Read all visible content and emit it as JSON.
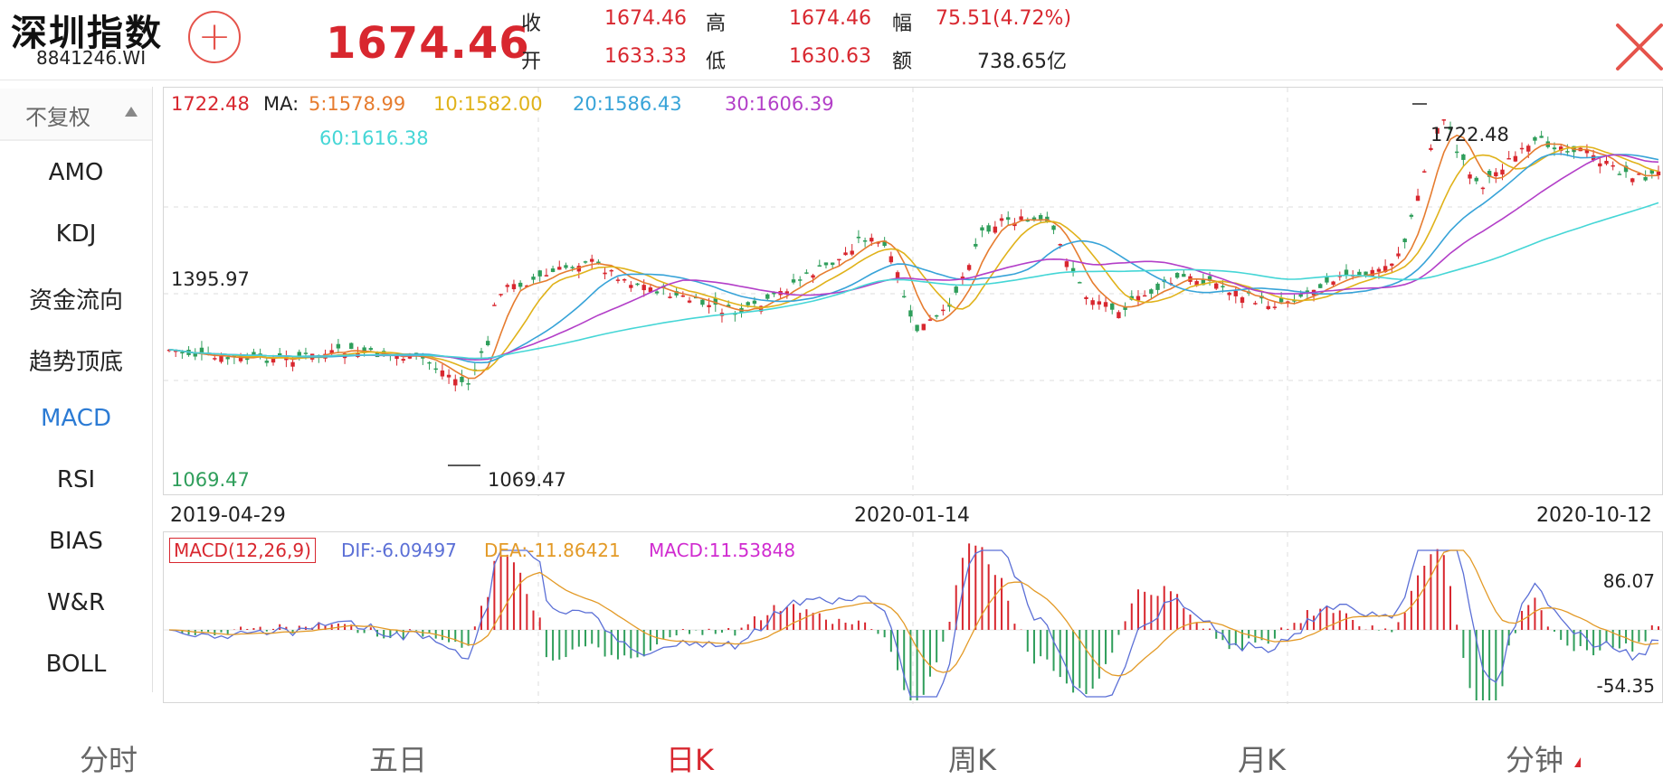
{
  "header": {
    "title": "深圳指数",
    "code": "8841246.WI",
    "add_symbol": "+",
    "price": "1674.46",
    "quote": [
      {
        "label": "收",
        "value": "1674.46"
      },
      {
        "label": "高",
        "value": "1674.46"
      },
      {
        "label": "幅",
        "value": "75.51(4.72%)"
      },
      {
        "label": "开",
        "value": "1633.33"
      },
      {
        "label": "低",
        "value": "1630.63"
      },
      {
        "label": "额",
        "value": "738.65亿"
      }
    ],
    "close_icon": "close-icon"
  },
  "sidebar": {
    "adjust_mode": "不复权",
    "items": [
      {
        "label": "AMO"
      },
      {
        "label": "KDJ"
      },
      {
        "label": "资金流向"
      },
      {
        "label": "趋势顶底"
      },
      {
        "label": "MACD"
      },
      {
        "label": "RSI"
      },
      {
        "label": "BIAS"
      },
      {
        "label": "W&R"
      },
      {
        "label": "BOLL"
      }
    ],
    "active": "MACD"
  },
  "kline": {
    "top_value": "1722.48",
    "ma_prefix": "MA:",
    "ma": [
      {
        "label": "5:1578.99",
        "color": "#e67c2f"
      },
      {
        "label": "10:1582.00",
        "color": "#e0b21a"
      },
      {
        "label": "20:1586.43",
        "color": "#37a3d8"
      },
      {
        "label": "30:1606.39",
        "color": "#b33fc8"
      },
      {
        "label": "60:1616.38",
        "color": "#45d6d6"
      }
    ],
    "mid_label": "1395.97",
    "min_label": "1069.47",
    "max_marker": "1722.48",
    "min_marker": "1069.47",
    "dates": [
      "2019-04-29",
      "2020-01-14",
      "2020-10-12"
    ]
  },
  "macd": {
    "title": "MACD(12,26,9)",
    "dif": "DIF:-6.09497",
    "dea": "DEA:-11.86421",
    "macd": "MACD:11.53848",
    "max": "86.07",
    "min": "-54.35",
    "colors": {
      "dif": "#5b6fd6",
      "dea": "#e39a27",
      "macd": "#d02bd0",
      "up": "#d8272f",
      "down": "#2f9e5b"
    }
  },
  "tabs": [
    {
      "label": "分时"
    },
    {
      "label": "五日"
    },
    {
      "label": "日K"
    },
    {
      "label": "周K"
    },
    {
      "label": "月K"
    },
    {
      "label": "分钟"
    }
  ],
  "active_tab": "日K"
}
